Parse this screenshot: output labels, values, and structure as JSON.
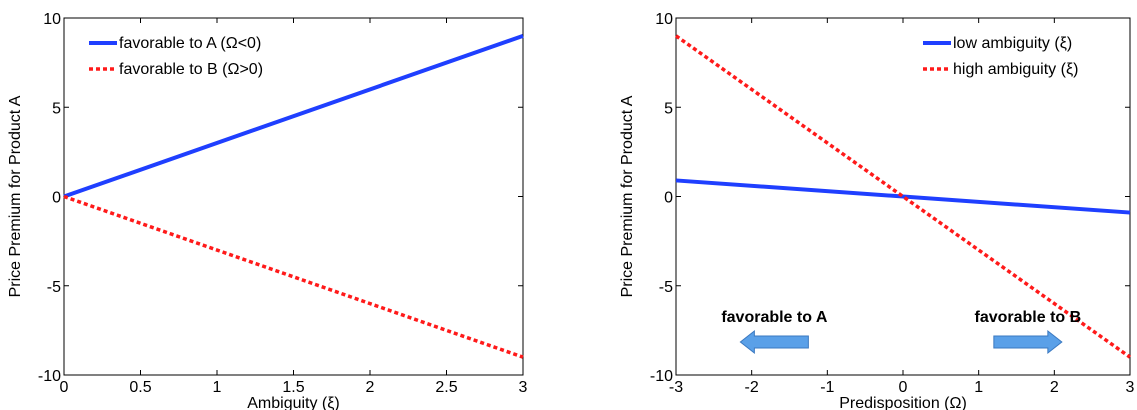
{
  "chart_data": [
    {
      "type": "line",
      "xlabel": "Ambiguity (ξ)",
      "ylabel": "Price Premium for Product A",
      "xlim": [
        0,
        3
      ],
      "ylim": [
        -10,
        10
      ],
      "xticks": [
        "0",
        "0.5",
        "1",
        "1.5",
        "2",
        "2.5",
        "3"
      ],
      "yticks": [
        "-10",
        "-5",
        "0",
        "5",
        "10"
      ],
      "grid": false,
      "legend_position": "top-left",
      "series": [
        {
          "name": "favorable to A (Ω<0)",
          "color": "#1f3fff",
          "style": "solid",
          "x": [
            0,
            3
          ],
          "y": [
            0,
            9
          ]
        },
        {
          "name": "favorable to B (Ω>0)",
          "color": "#ff1a1a",
          "style": "dotted",
          "x": [
            0,
            3
          ],
          "y": [
            0,
            -9
          ]
        }
      ]
    },
    {
      "type": "line",
      "xlabel": "Predisposition (Ω)",
      "ylabel": "Price Premium for Product A",
      "xlim": [
        -3,
        3
      ],
      "ylim": [
        -10,
        10
      ],
      "xticks": [
        "-3",
        "-2",
        "-1",
        "0",
        "1",
        "2",
        "3"
      ],
      "yticks": [
        "-10",
        "-5",
        "0",
        "5",
        "10"
      ],
      "grid": false,
      "legend_position": "top-right",
      "series": [
        {
          "name": "low ambiguity (ξ)",
          "color": "#1f3fff",
          "style": "solid",
          "x": [
            -3,
            3
          ],
          "y": [
            0.9,
            -0.9
          ]
        },
        {
          "name": "high ambiguity (ξ)",
          "color": "#ff1a1a",
          "style": "dotted",
          "x": [
            -3,
            3
          ],
          "y": [
            9,
            -9
          ]
        }
      ],
      "annotations": [
        {
          "text": "favorable to A",
          "arrow": "left",
          "arrow_color": "#5aa0e8"
        },
        {
          "text": "favorable to B",
          "arrow": "right",
          "arrow_color": "#5aa0e8"
        }
      ]
    }
  ]
}
